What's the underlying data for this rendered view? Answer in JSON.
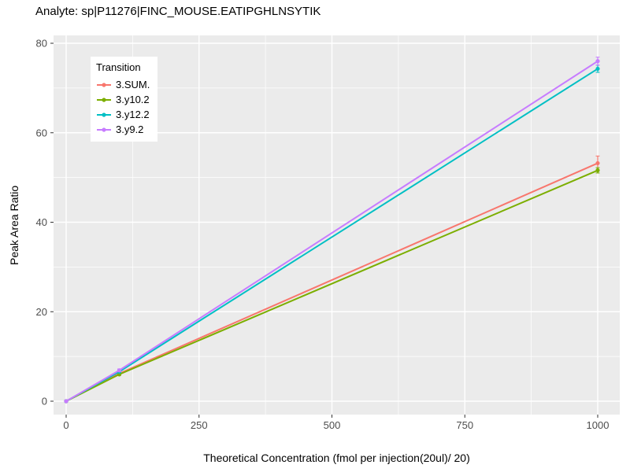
{
  "chart_data": {
    "type": "line",
    "title": "Analyte: sp|P11276|FINC_MOUSE.EATIPGHLNSYTIK",
    "xlabel": "Theoretical Concentration (fmol per injection(20ul)/ 20)",
    "ylabel": "Peak Area Ratio",
    "legend_title": "Transition",
    "xlim": [
      0,
      1000
    ],
    "ylim": [
      0,
      80
    ],
    "x_ticks": [
      0,
      250,
      500,
      750,
      1000
    ],
    "x_minor": [
      125,
      375,
      625,
      875
    ],
    "y_ticks": [
      0,
      20,
      40,
      60,
      80
    ],
    "y_minor": [
      10,
      30,
      50,
      70
    ],
    "panel_bg": "#EBEBEB",
    "grid_color": "#FFFFFF",
    "tick_color": "#333333",
    "tick_label_color": "#4D4D4D",
    "legend_position": "top-left-inside",
    "grid": true,
    "series": [
      {
        "name": "3.SUM.",
        "color": "#F8766D",
        "points": [
          {
            "x": 0,
            "y": 0,
            "e": 0
          },
          {
            "x": 100,
            "y": 6.2,
            "e": 0.3
          },
          {
            "x": 1000,
            "y": 53.2,
            "e": 1.6
          }
        ]
      },
      {
        "name": "3.y10.2",
        "color": "#7CAE00",
        "points": [
          {
            "x": 0,
            "y": 0,
            "e": 0
          },
          {
            "x": 100,
            "y": 6.0,
            "e": 0.2
          },
          {
            "x": 1000,
            "y": 51.6,
            "e": 0.6
          }
        ]
      },
      {
        "name": "3.y12.2",
        "color": "#00BFC4",
        "points": [
          {
            "x": 0,
            "y": 0,
            "e": 0
          },
          {
            "x": 100,
            "y": 6.6,
            "e": 0.2
          },
          {
            "x": 1000,
            "y": 74.3,
            "e": 0.8
          }
        ]
      },
      {
        "name": "3.y9.2",
        "color": "#C77CFF",
        "points": [
          {
            "x": 0,
            "y": 0,
            "e": 0
          },
          {
            "x": 100,
            "y": 6.9,
            "e": 0.3
          },
          {
            "x": 1000,
            "y": 76.0,
            "e": 0.9
          }
        ]
      }
    ]
  }
}
